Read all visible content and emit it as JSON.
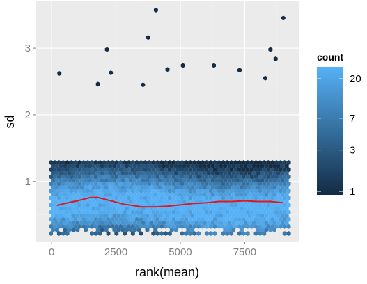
{
  "chart_data": {
    "type": "hexbin",
    "title": "",
    "xlabel": "rank(mean)",
    "ylabel": "sd",
    "xlim": [
      -600,
      9600
    ],
    "ylim": [
      0.1,
      3.7
    ],
    "x_ticks": [
      0,
      2500,
      5000,
      7500
    ],
    "x_tick_labels": [
      "0",
      "2500",
      "5000",
      "7500"
    ],
    "y_ticks": [
      1,
      2,
      3
    ],
    "y_tick_labels": [
      "1",
      "2",
      "3"
    ],
    "grid": true,
    "legend": {
      "title": "count",
      "position": "right",
      "breaks": [
        20,
        7,
        3,
        1
      ],
      "break_labels": [
        "20",
        "7",
        "3",
        "1"
      ],
      "scale": "log",
      "low_color": "#132b43",
      "high_color": "#56b1f7"
    },
    "smooth_line": {
      "color": "#e3161c",
      "x": [
        200,
        500,
        1000,
        1500,
        1800,
        2200,
        2800,
        3500,
        4000,
        4500,
        5000,
        5500,
        6000,
        6500,
        7000,
        7500,
        8000,
        8500,
        9000
      ],
      "y": [
        0.64,
        0.67,
        0.71,
        0.76,
        0.76,
        0.72,
        0.66,
        0.62,
        0.62,
        0.63,
        0.65,
        0.67,
        0.68,
        0.7,
        0.7,
        0.71,
        0.7,
        0.7,
        0.68
      ]
    },
    "outliers": [
      {
        "x": 4050,
        "y": 3.57
      },
      {
        "x": 9000,
        "y": 3.45
      },
      {
        "x": 3750,
        "y": 3.16
      },
      {
        "x": 2150,
        "y": 2.98
      },
      {
        "x": 8500,
        "y": 2.98
      },
      {
        "x": 8700,
        "y": 2.84
      },
      {
        "x": 300,
        "y": 2.62
      },
      {
        "x": 2300,
        "y": 2.63
      },
      {
        "x": 5100,
        "y": 2.74
      },
      {
        "x": 6300,
        "y": 2.74
      },
      {
        "x": 7300,
        "y": 2.67
      },
      {
        "x": 4500,
        "y": 2.68
      },
      {
        "x": 3550,
        "y": 2.45
      },
      {
        "x": 8300,
        "y": 2.55
      },
      {
        "x": 1800,
        "y": 2.46
      }
    ],
    "colors": {
      "panel_background": "#ebebeb",
      "grid_major": "#ffffff",
      "grid_minor": "#f2f2f2"
    }
  }
}
